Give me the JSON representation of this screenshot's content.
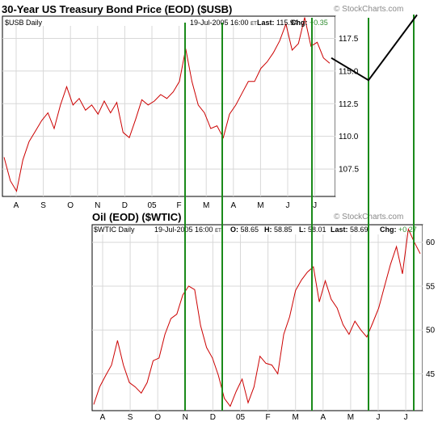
{
  "colors": {
    "price": "#cc0000",
    "price_dark": "#000000",
    "vline": "#1a8a1a",
    "grid": "#d8d8d8",
    "chg": "#2e8b2e",
    "watermark": "#8a8a8a",
    "overlay": "#000000"
  },
  "chart_data": [
    {
      "type": "line",
      "title": "30-Year US Treasury Bond Price (EOD) ($USB)",
      "watermark": "© StockCharts.com",
      "header": {
        "symbol": "$USB Daily",
        "date": "19-Jul-2005 16:00",
        "tz": "ET",
        "last_label": "Last:",
        "last_value": "115.94",
        "chg_label": "Chg:",
        "chg_value": "+0.35"
      },
      "x_tick_labels": [
        "A",
        "S",
        "O",
        "N",
        "D",
        "05",
        "F",
        "M",
        "A",
        "M",
        "J",
        "J"
      ],
      "y_ticks": [
        107.5,
        110.0,
        112.5,
        115.0,
        117.5
      ],
      "y_tick_labels": [
        "107.5",
        "110.0",
        "112.5",
        "115.0",
        "117.5"
      ],
      "ylim": [
        105.4,
        119.2
      ],
      "series": [
        {
          "values": [
            108.4,
            106.6,
            105.8,
            108.2,
            109.6,
            110.4,
            111.2,
            111.8,
            110.6,
            112.4,
            113.8,
            112.4,
            112.9,
            112.0,
            112.4,
            111.7,
            112.7,
            111.8,
            112.6,
            110.3,
            109.9,
            111.3,
            112.8,
            112.4,
            112.7,
            113.2,
            112.9,
            113.4,
            114.2,
            116.7,
            114.2,
            112.4,
            111.8,
            110.6,
            110.8,
            109.9,
            111.7,
            112.4,
            113.3,
            114.2,
            114.2,
            115.2,
            115.7,
            116.4,
            117.3,
            118.6,
            116.6,
            117.1,
            119.1,
            116.9,
            117.2,
            116.0,
            115.6
          ]
        }
      ],
      "overlay_path": [
        116.0,
        114.3,
        119.3
      ]
    },
    {
      "type": "line",
      "title": "Oil (EOD) ($WTIC)",
      "watermark": "© StockCharts.com",
      "header": {
        "symbol": "$WTIC Daily",
        "date": "19-Jul-2005 16:00",
        "tz": "ET",
        "open_label": "O:",
        "open_value": "58.65",
        "high_label": "H:",
        "high_value": "58.85",
        "low_label": "L:",
        "low_value": "58.01",
        "last_label": "Last:",
        "last_value": "58.69",
        "chg_label": "Chg:",
        "chg_value": "+0.27"
      },
      "x_tick_labels": [
        "A",
        "S",
        "O",
        "N",
        "D",
        "05",
        "F",
        "M",
        "A",
        "M",
        "J",
        "J"
      ],
      "y_ticks": [
        45,
        50,
        55,
        60
      ],
      "y_tick_labels": [
        "45",
        "50",
        "55",
        "60"
      ],
      "ylim": [
        40.8,
        62.0
      ],
      "series": [
        {
          "values": [
            41.5,
            43.5,
            44.8,
            46.0,
            48.8,
            46.0,
            44.0,
            43.5,
            42.8,
            44.0,
            46.5,
            46.8,
            49.5,
            51.3,
            51.8,
            54.0,
            55.0,
            54.6,
            50.5,
            48.0,
            46.8,
            44.8,
            42.2,
            41.3,
            43.0,
            44.4,
            41.7,
            43.5,
            47.0,
            46.2,
            46.0,
            45.0,
            49.5,
            51.5,
            54.5,
            55.7,
            56.6,
            57.2,
            53.2,
            55.6,
            53.5,
            52.5,
            50.6,
            49.5,
            51.0,
            50.0,
            49.2,
            50.8,
            52.5,
            55.0,
            57.5,
            59.5,
            56.4,
            61.5,
            60.0,
            58.7
          ]
        }
      ]
    }
  ]
}
